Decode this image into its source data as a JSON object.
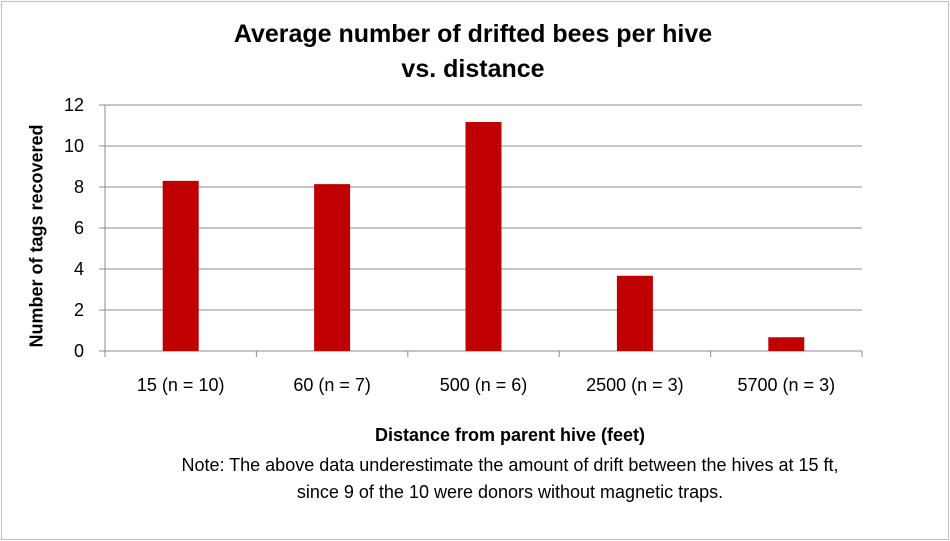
{
  "chart_data": {
    "type": "bar",
    "title_line1": "Average number of drifted bees per hive",
    "title_line2": "vs. distance",
    "xlabel": "Distance from parent hive (feet)",
    "ylabel": "Number of tags recovered",
    "categories": [
      "15 (n = 10)",
      "60 (n = 7)",
      "500 (n = 6)",
      "2500 (n = 3)",
      "5700 (n = 3)"
    ],
    "values": [
      8.3,
      8.14,
      11.17,
      3.67,
      0.67
    ],
    "ylim": [
      0,
      12
    ],
    "yticks": [
      "0",
      "2",
      "4",
      "6",
      "8",
      "10",
      "12"
    ],
    "grid": true,
    "bar_color": "#c00000"
  },
  "note": {
    "line1": "Note: The above data underestimate the amount of drift between the hives at 15 ft,",
    "line2": "since 9 of the 10 were donors without magnetic traps."
  }
}
